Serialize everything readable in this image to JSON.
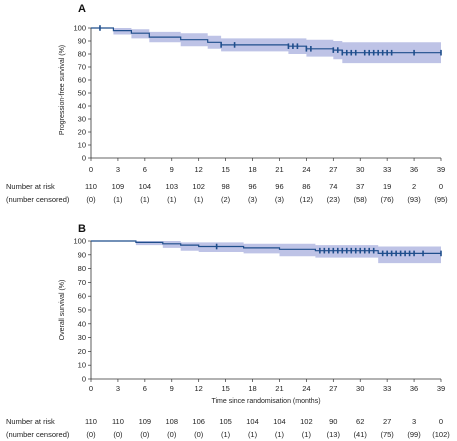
{
  "chart_data": [
    {
      "type": "line",
      "panel": "A",
      "ylabel": "Progression-free survival (%)",
      "xlabel": "",
      "xlim": [
        0,
        39
      ],
      "ylim": [
        0,
        100
      ],
      "xticks": [
        0,
        3,
        6,
        9,
        12,
        15,
        18,
        21,
        24,
        27,
        30,
        33,
        36,
        39
      ],
      "yticks": [
        0,
        10,
        20,
        30,
        40,
        50,
        60,
        70,
        80,
        90,
        100
      ],
      "series": [
        {
          "color": "#1f4e8c",
          "ci_color": "#b7bde3",
          "step_x": [
            0,
            2.5,
            4.5,
            6.5,
            10,
            13,
            14.5,
            22,
            24,
            27,
            28,
            39
          ],
          "step_y": [
            100,
            98,
            96,
            93,
            91,
            89,
            87,
            86,
            84,
            83,
            81,
            81
          ],
          "ci_upper": [
            100,
            100,
            99,
            97,
            96,
            94,
            92,
            92,
            91,
            90,
            89,
            89
          ],
          "ci_lower": [
            100,
            95,
            92,
            89,
            86,
            84,
            82,
            80,
            78,
            76,
            73,
            73
          ],
          "censor_x": [
            1,
            14.5,
            16,
            22,
            22.5,
            23,
            24,
            24.5,
            27,
            27.5,
            28,
            28.5,
            29,
            29.5,
            30.5,
            31,
            31.5,
            32,
            32.5,
            33,
            33.5,
            36,
            39
          ]
        }
      ],
      "risk_table": {
        "header1": "Number at risk",
        "header2": "(number censored)",
        "at_risk": [
          "110",
          "109",
          "104",
          "103",
          "102",
          "98",
          "96",
          "96",
          "86",
          "74",
          "37",
          "19",
          "2",
          "0"
        ],
        "censored": [
          "(0)",
          "(1)",
          "(1)",
          "(1)",
          "(1)",
          "(2)",
          "(3)",
          "(3)",
          "(12)",
          "(23)",
          "(58)",
          "(76)",
          "(93)",
          "(95)"
        ]
      }
    },
    {
      "type": "line",
      "panel": "B",
      "ylabel": "Overall survival (%)",
      "xlabel": "Time since randomisation (months)",
      "xlim": [
        0,
        39
      ],
      "ylim": [
        0,
        100
      ],
      "xticks": [
        0,
        3,
        6,
        9,
        12,
        15,
        18,
        21,
        24,
        27,
        30,
        33,
        36,
        39
      ],
      "yticks": [
        0,
        10,
        20,
        30,
        40,
        50,
        60,
        70,
        80,
        90,
        100
      ],
      "series": [
        {
          "color": "#1f4e8c",
          "ci_color": "#b7bde3",
          "step_x": [
            0,
            5,
            8,
            10,
            12,
            17,
            21,
            25,
            32,
            39
          ],
          "step_y": [
            100,
            99,
            98,
            97,
            96,
            95,
            94,
            93,
            91,
            91
          ],
          "ci_upper": [
            100,
            100,
            100,
            99,
            99,
            98,
            98,
            97,
            96,
            96
          ],
          "ci_lower": [
            100,
            97,
            95,
            93,
            92,
            91,
            89,
            88,
            84,
            84
          ],
          "censor_x": [
            14,
            25.5,
            26,
            26.5,
            27,
            27.5,
            28,
            28.5,
            29,
            29.5,
            30,
            30.5,
            31,
            31.5,
            32.5,
            33,
            33.5,
            34,
            34.5,
            35,
            35.5,
            36,
            37,
            39
          ]
        }
      ],
      "risk_table": {
        "header1": "Number at risk",
        "header2": "(number censored)",
        "at_risk": [
          "110",
          "110",
          "109",
          "108",
          "106",
          "105",
          "104",
          "104",
          "102",
          "90",
          "62",
          "27",
          "3",
          "0"
        ],
        "censored": [
          "(0)",
          "(0)",
          "(0)",
          "(0)",
          "(0)",
          "(1)",
          "(1)",
          "(1)",
          "(1)",
          "(13)",
          "(41)",
          "(75)",
          "(99)",
          "(102)"
        ]
      }
    }
  ]
}
